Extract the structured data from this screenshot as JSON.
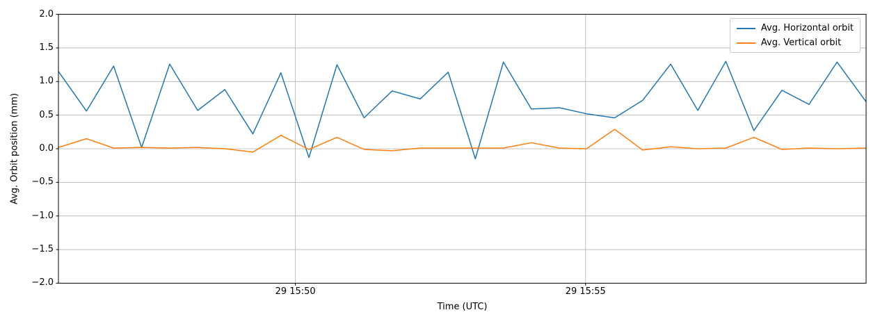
{
  "chart_data": {
    "type": "line",
    "title": "",
    "xlabel": "Time (UTC)",
    "ylabel": "Avg. Orbit position (mm)",
    "ylim": [
      -2.0,
      2.0
    ],
    "y_ticks": [
      2.0,
      1.5,
      1.0,
      0.5,
      0.0,
      -0.5,
      -1.0,
      -1.5,
      -2.0
    ],
    "y_tick_labels": [
      "2.0",
      "1.5",
      "1.0",
      "0.5",
      "0.0",
      "−0.5",
      "−1.0",
      "−1.5",
      "−2.0"
    ],
    "x_range_seconds_rel_1550": [
      -245,
      590
    ],
    "x_ticks_seconds_rel_1550": [
      0,
      300
    ],
    "x_tick_labels": [
      "29 15:50",
      "29 15:55"
    ],
    "grid": true,
    "legend_position": "upper right",
    "x_seconds_rel_1550": [
      -245,
      -216,
      -188,
      -159,
      -130,
      -101,
      -73,
      -44,
      -15,
      14,
      43,
      71,
      100,
      129,
      158,
      186,
      215,
      244,
      273,
      301,
      330,
      359,
      388,
      416,
      445,
      474,
      503,
      531,
      560,
      590
    ],
    "series": [
      {
        "name": "Avg. Horizontal orbit",
        "color": "#1f77b4",
        "values": [
          1.15,
          0.56,
          1.23,
          0.02,
          1.26,
          0.57,
          0.88,
          0.22,
          1.13,
          -0.13,
          1.25,
          0.46,
          0.86,
          0.74,
          1.14,
          -0.15,
          1.29,
          0.59,
          0.61,
          0.52,
          0.46,
          0.72,
          1.26,
          0.57,
          1.3,
          0.27,
          0.87,
          0.66,
          1.29,
          0.7
        ]
      },
      {
        "name": "Avg. Vertical orbit",
        "color": "#ff7f0e",
        "values": [
          0.02,
          0.15,
          0.01,
          0.02,
          0.01,
          0.02,
          0.0,
          -0.05,
          0.2,
          -0.01,
          0.17,
          -0.01,
          -0.03,
          0.01,
          0.01,
          0.01,
          0.01,
          0.09,
          0.01,
          0.0,
          0.29,
          -0.02,
          0.03,
          0.0,
          0.01,
          0.17,
          -0.01,
          0.01,
          0.0,
          0.01
        ]
      }
    ]
  },
  "colors": {
    "background": "#ffffff",
    "grid": "#b0b0b0",
    "spine": "#000000",
    "legend_border": "#cccccc"
  }
}
